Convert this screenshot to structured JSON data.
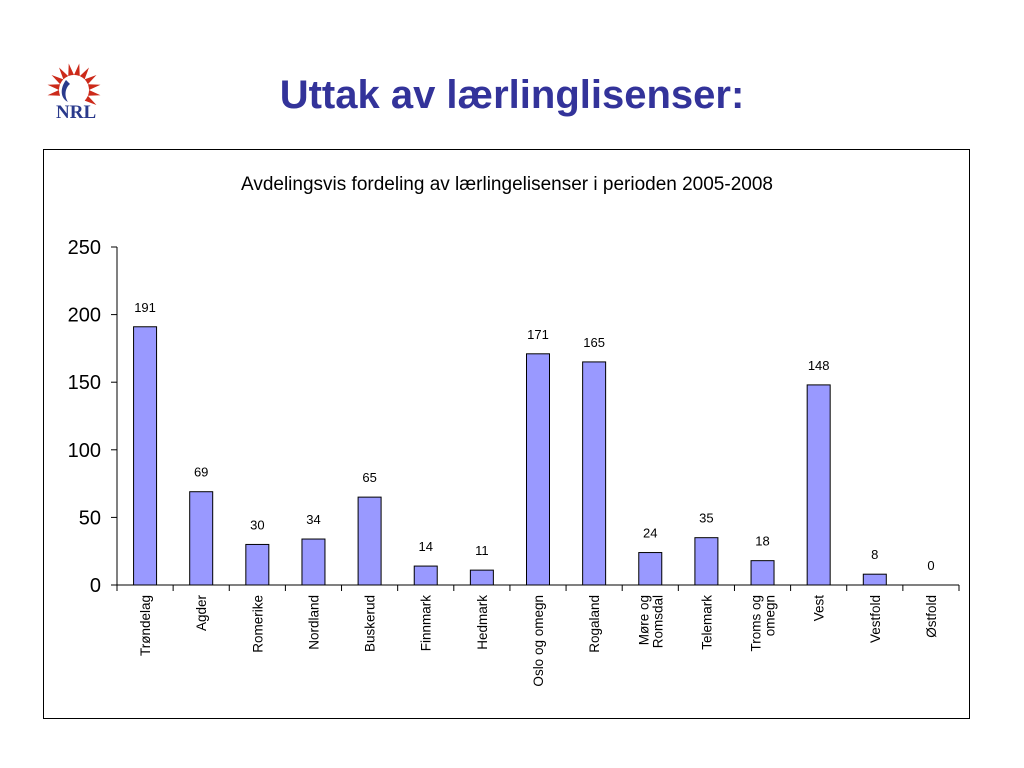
{
  "slide": {
    "title": "Uttak av lærlinglisenser:",
    "logo_text": "NRL"
  },
  "colors": {
    "title": "#33339a",
    "bar_fill": "#9999ff",
    "bar_stroke": "#000000",
    "logo_red": "#cc2a1a",
    "logo_blue": "#2a3a8c"
  },
  "chart_data": {
    "type": "bar",
    "title": "Avdelingsvis fordeling av lærlingelisenser i perioden 2005-2008",
    "xlabel": "",
    "ylabel": "",
    "ylim": [
      0,
      250
    ],
    "yticks": [
      0,
      50,
      100,
      150,
      200,
      250
    ],
    "grid": false,
    "legend": "none",
    "categories": [
      "Trøndelag",
      "Agder",
      "Romerike",
      "Nordland",
      "Buskerud",
      "Finnmark",
      "Hedmark",
      "Oslo og omegn",
      "Rogaland",
      "Møre og Romsdal",
      "Telemark",
      "Troms og omegn",
      "Vest",
      "Vestfold",
      "Østfold"
    ],
    "category_lines": [
      [
        "Trøndelag"
      ],
      [
        "Agder"
      ],
      [
        "Romerike"
      ],
      [
        "Nordland"
      ],
      [
        "Buskerud"
      ],
      [
        "Finnmark"
      ],
      [
        "Hedmark"
      ],
      [
        "Oslo og omegn"
      ],
      [
        "Rogaland"
      ],
      [
        "Møre og",
        "Romsdal"
      ],
      [
        "Telemark"
      ],
      [
        "Troms og",
        "omegn"
      ],
      [
        "Vest"
      ],
      [
        "Vestfold"
      ],
      [
        "Østfold"
      ]
    ],
    "values": [
      191,
      69,
      30,
      34,
      65,
      14,
      11,
      171,
      165,
      24,
      35,
      18,
      148,
      8,
      0
    ]
  }
}
